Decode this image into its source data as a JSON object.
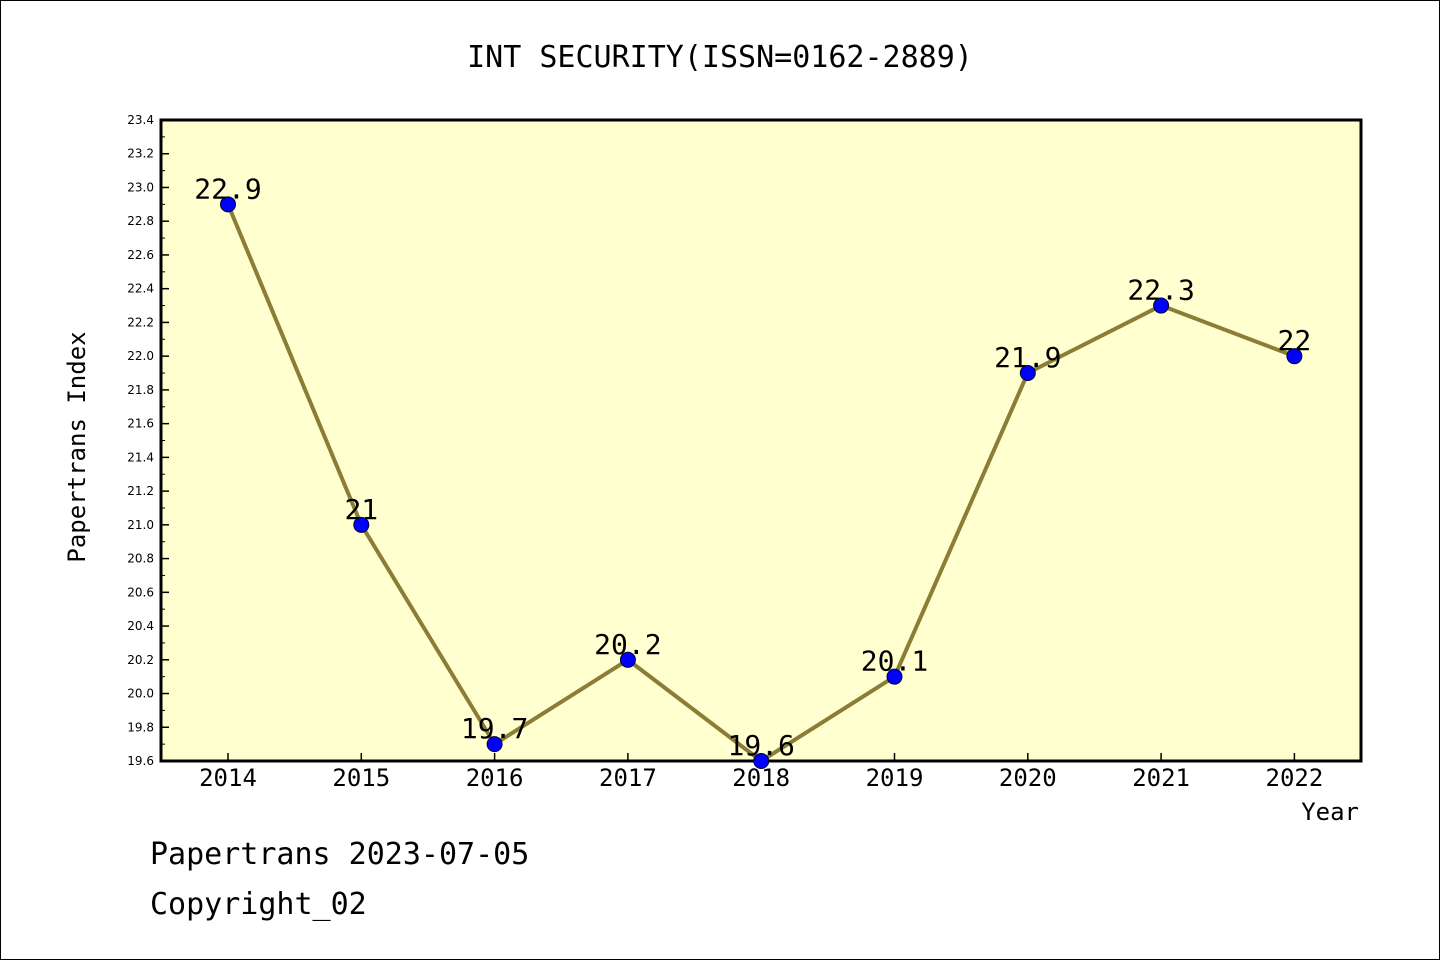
{
  "chart_data": {
    "type": "line",
    "title": "INT SECURITY(ISSN=0162-2889)",
    "xlabel": "Year",
    "ylabel": "Papertrans Index",
    "categories": [
      "2014",
      "2015",
      "2016",
      "2017",
      "2018",
      "2019",
      "2020",
      "2021",
      "2022"
    ],
    "series": [
      {
        "values": [
          22.9,
          21.0,
          19.7,
          20.2,
          19.6,
          20.1,
          21.9,
          22.3,
          22.0
        ],
        "labels": [
          "22.9",
          "21",
          "19.7",
          "20.2",
          "19.6",
          "20.1",
          "21.9",
          "22.3",
          "22"
        ],
        "line_color": "#8b7d35",
        "marker_color": "#0000ff"
      }
    ],
    "ylim": [
      19.6,
      23.4
    ],
    "yticks": [
      "19.6",
      "19.8",
      "20.0",
      "20.2",
      "20.4",
      "20.6",
      "20.8",
      "21.0",
      "21.2",
      "21.4",
      "21.6",
      "21.8",
      "22.0",
      "22.2",
      "22.4",
      "22.6",
      "22.8",
      "23.0",
      "23.2",
      "23.4"
    ],
    "plot_background": "#ffffd0",
    "grid": false,
    "legend": false
  },
  "footer": {
    "line1": "Papertrans 2023-07-05",
    "line2": "Copyright_02"
  }
}
